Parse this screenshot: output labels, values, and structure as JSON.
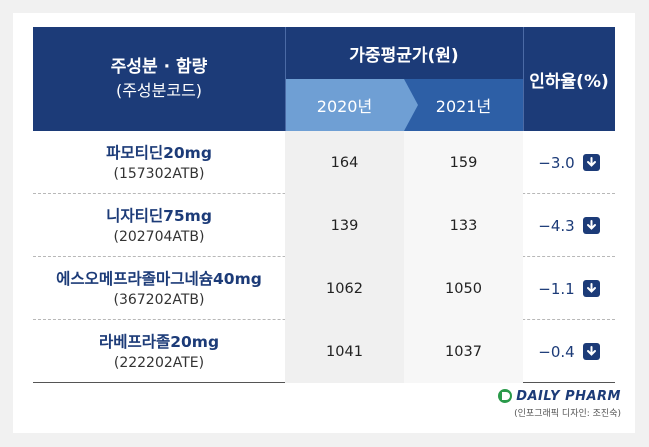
{
  "header": {
    "ingredient_line1": "주성분 · 함량",
    "ingredient_line2": "(주성분코드)",
    "avg_price": "가중평균가(원)",
    "year1": "2020년",
    "year2": "2021년",
    "rate": "인하율(%)"
  },
  "rows": [
    {
      "name": "파모티딘20mg",
      "code": "(157302ATB)",
      "v2020": "164",
      "v2021": "159",
      "rate": "−3.0"
    },
    {
      "name": "니자티딘75mg",
      "code": "(202704ATB)",
      "v2020": "139",
      "v2021": "133",
      "rate": "−4.3"
    },
    {
      "name": "에스오메프라졸마그네슘40mg",
      "code": "(367202ATB)",
      "v2020": "1062",
      "v2021": "1050",
      "rate": "−1.1"
    },
    {
      "name": "라베프라졸20mg",
      "code": "(222202ATE)",
      "v2020": "1041",
      "v2021": "1037",
      "rate": "−0.4"
    }
  ],
  "logo": {
    "brand": "DAILY PHARM",
    "credit": "(인포그래픽 디자인: 조진숙)"
  },
  "colors": {
    "header_bg": "#1c3b78",
    "year1_band": "#6f9fd4",
    "year2_band": "#2d5fa6",
    "accent_text": "#1c3b78"
  }
}
